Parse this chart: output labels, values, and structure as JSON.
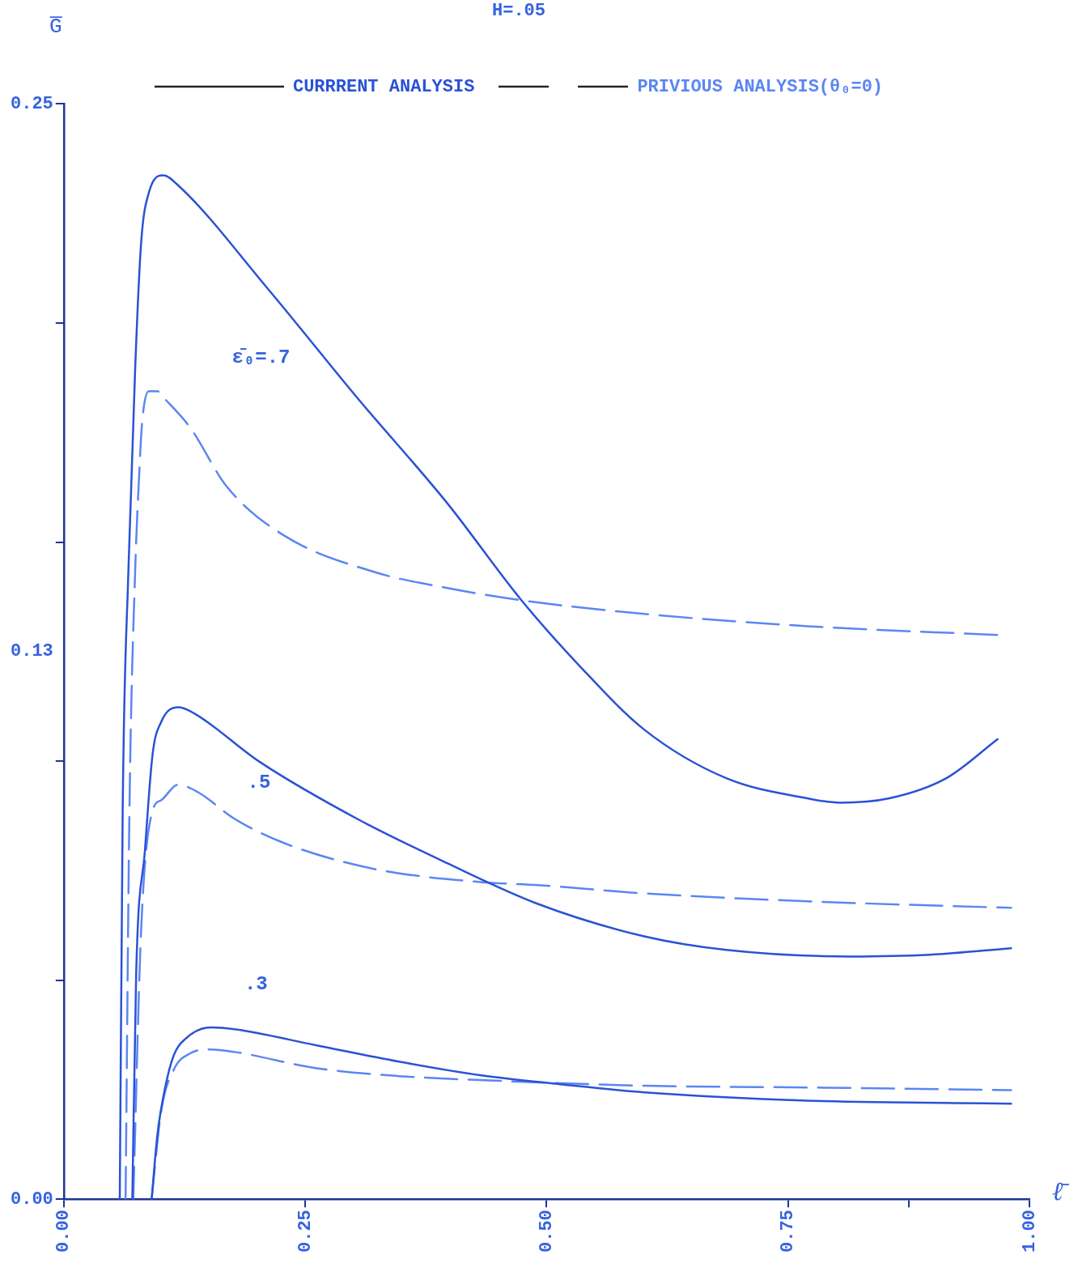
{
  "chart_data": {
    "type": "line",
    "title": "H=.05",
    "xlabel": "ℓ̄",
    "ylabel": "G̅",
    "legend": "top",
    "marker": "none",
    "grid": false,
    "xlim": [
      0,
      1
    ],
    "xticks": [
      {
        "value": 0,
        "label": "0.00"
      },
      {
        "value": 0.25,
        "label": "0.25"
      },
      {
        "value": 0.5,
        "label": "0.50"
      },
      {
        "value": 0.75,
        "label": "0.75"
      },
      {
        "value": 0.875,
        "label": null
      },
      {
        "value": 1,
        "label": "1.00"
      }
    ],
    "ylim": [
      0,
      0.25
    ],
    "yticks": [
      {
        "value": 0,
        "label": "0.00"
      },
      {
        "value": 0.05,
        "label": null
      },
      {
        "value": 0.1,
        "label": null
      },
      {
        "value": 0.125,
        "label": "0.13"
      },
      {
        "value": 0.15,
        "label": null
      },
      {
        "value": 0.2,
        "label": null
      },
      {
        "value": 0.25,
        "label": "0.25"
      }
    ],
    "series": [
      {
        "name": "CURRRENT ANALYSIS",
        "color": "#2a52d6",
        "line_style": "solid",
        "x": [
          0.058,
          0.061,
          0.067,
          0.074,
          0.08,
          0.088,
          0.103,
          0.118,
          0.211,
          0.304,
          0.397,
          0.474,
          0.533,
          0.601,
          0.686,
          0.77,
          0.804,
          0.855,
          0.914,
          0.967,
          null,
          0.071,
          0.075,
          0.084,
          0.092,
          0.101,
          0.119,
          0.135,
          0.203,
          0.304,
          0.397,
          0.491,
          0.601,
          0.686,
          0.813,
          0.897,
          0.981,
          null,
          0.091,
          0.097,
          0.105,
          0.114,
          0.126,
          0.152,
          0.177,
          0.262,
          0.347,
          0.431,
          0.516,
          0.601,
          0.77,
          0.981
        ],
        "values": [
          0,
          0.0887,
          0.144,
          0.19,
          0.218,
          0.2297,
          0.2337,
          0.2315,
          0.2079,
          0.1829,
          0.1589,
          0.1367,
          0.122,
          0.1072,
          0.0961,
          0.0915,
          0.0905,
          0.0915,
          0.0961,
          0.105,
          null,
          0,
          0.0517,
          0.0795,
          0.1016,
          0.109,
          0.1123,
          0.1109,
          0.0998,
          0.0868,
          0.0767,
          0.0674,
          0.06,
          0.0569,
          0.0554,
          0.0558,
          0.0573,
          null,
          0,
          0.0148,
          0.0255,
          0.0329,
          0.0366,
          0.0392,
          0.0388,
          0.0351,
          0.0314,
          0.0283,
          0.0262,
          0.0244,
          0.0225,
          0.0218
        ]
      },
      {
        "name": "PRIVIOUS ANALYSIS(θ₀=0)",
        "color": "#5b86f2",
        "line_style": "dashed",
        "x": [
          0.064,
          0.068,
          0.074,
          0.078,
          0.081,
          0.088,
          0.097,
          0.105,
          0.131,
          0.169,
          0.228,
          0.321,
          0.397,
          0.474,
          0.601,
          0.77,
          0.967,
          null,
          0.072,
          0.08,
          0.092,
          0.101,
          0.118,
          0.139,
          0.177,
          0.228,
          0.321,
          0.431,
          0.491,
          0.601,
          0.77,
          0.981,
          null,
          0.091,
          0.101,
          0.114,
          0.131,
          0.152,
          0.177,
          0.262,
          0.347,
          0.431,
          0.601,
          0.77,
          0.981
        ],
        "values": [
          0,
          0.0887,
          0.144,
          0.165,
          0.177,
          0.1844,
          0.1844,
          0.1826,
          0.1761,
          0.1626,
          0.1515,
          0.1432,
          0.1395,
          0.1367,
          0.1336,
          0.1308,
          0.1288,
          null,
          0,
          0.061,
          0.0887,
          0.0911,
          0.0946,
          0.0929,
          0.0868,
          0.0813,
          0.0754,
          0.0724,
          0.0717,
          0.0698,
          0.068,
          0.0665,
          null,
          0,
          0.0203,
          0.0296,
          0.0333,
          0.0342,
          0.0336,
          0.0299,
          0.0281,
          0.0272,
          0.0259,
          0.0255,
          0.0249
        ]
      }
    ],
    "annotations": [
      "ε̄₀=.7",
      ".5",
      ".3"
    ]
  }
}
